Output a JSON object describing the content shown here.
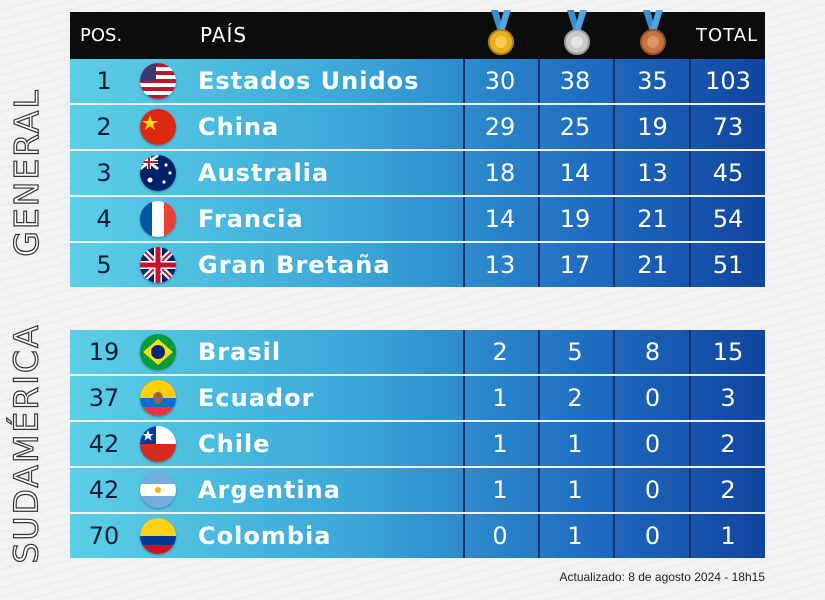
{
  "header": {
    "pos_label": "POS.",
    "country_label": "PAÍS",
    "total_label": "TOTAL",
    "medal_icons": [
      "gold-medal-icon",
      "silver-medal-icon",
      "bronze-medal-icon"
    ]
  },
  "sections": {
    "general": "GENERAL",
    "sudamerica": "SUDAMÉRICA"
  },
  "general_rows": [
    {
      "pos": "1",
      "country": "Estados Unidos",
      "flag": "usa-flag-icon",
      "gold": "30",
      "silver": "38",
      "bronze": "35",
      "total": "103"
    },
    {
      "pos": "2",
      "country": "China",
      "flag": "china-flag-icon",
      "gold": "29",
      "silver": "25",
      "bronze": "19",
      "total": "73"
    },
    {
      "pos": "3",
      "country": "Australia",
      "flag": "australia-flag-icon",
      "gold": "18",
      "silver": "14",
      "bronze": "13",
      "total": "45"
    },
    {
      "pos": "4",
      "country": "Francia",
      "flag": "france-flag-icon",
      "gold": "14",
      "silver": "19",
      "bronze": "21",
      "total": "54"
    },
    {
      "pos": "5",
      "country": "Gran Bretaña",
      "flag": "uk-flag-icon",
      "gold": "13",
      "silver": "17",
      "bronze": "21",
      "total": "51"
    }
  ],
  "sudamerica_rows": [
    {
      "pos": "19",
      "country": "Brasil",
      "flag": "brazil-flag-icon",
      "gold": "2",
      "silver": "5",
      "bronze": "8",
      "total": "15"
    },
    {
      "pos": "37",
      "country": "Ecuador",
      "flag": "ecuador-flag-icon",
      "gold": "1",
      "silver": "2",
      "bronze": "0",
      "total": "3"
    },
    {
      "pos": "42",
      "country": "Chile",
      "flag": "chile-flag-icon",
      "gold": "1",
      "silver": "1",
      "bronze": "0",
      "total": "2"
    },
    {
      "pos": "42",
      "country": "Argentina",
      "flag": "argentina-flag-icon",
      "gold": "1",
      "silver": "1",
      "bronze": "0",
      "total": "2"
    },
    {
      "pos": "70",
      "country": "Colombia",
      "flag": "colombia-flag-icon",
      "gold": "0",
      "silver": "1",
      "bronze": "0",
      "total": "1"
    }
  ],
  "footnote": "Actualizado: 8 de agosto 2024 - 18h15",
  "colors": {
    "header_bg": "#0c0c0c",
    "row_gradient_start": "#5ccfe6",
    "row_gradient_end": "#11449e",
    "gold": "#e9b21a",
    "silver": "#c9c9c9",
    "bronze": "#c6743f"
  }
}
